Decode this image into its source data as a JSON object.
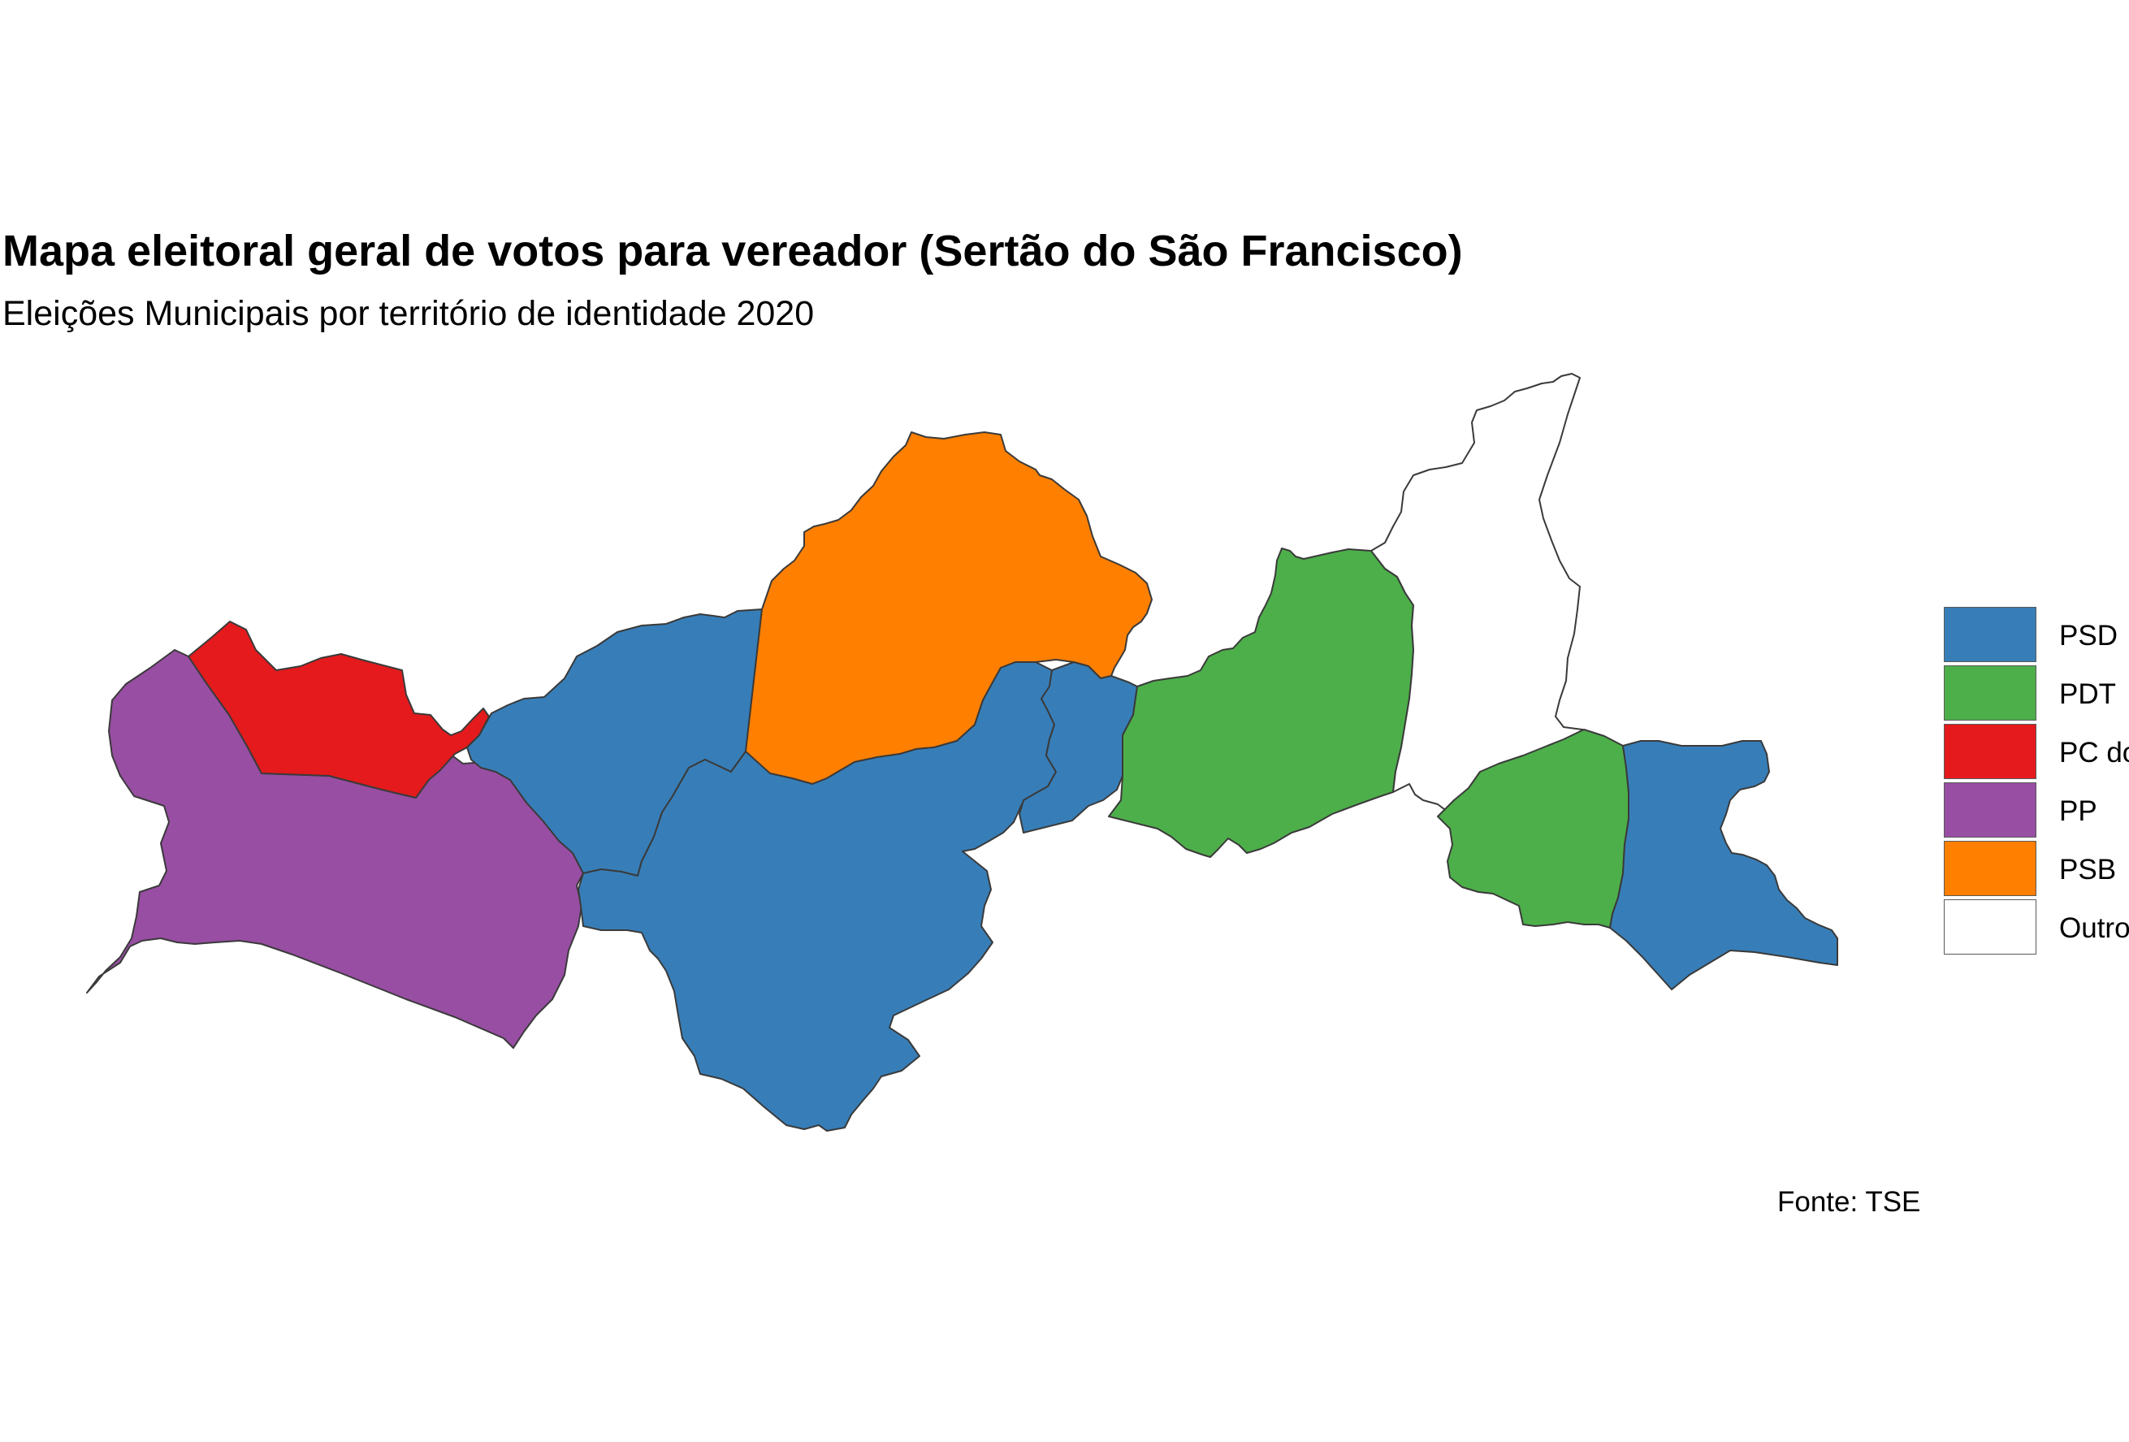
{
  "title": "Mapa eleitoral geral de votos para vereador (Sertão do São Francisco)",
  "subtitle": "Eleições Municipais por território de identidade 2020",
  "caption": "Fonte: TSE",
  "legend": {
    "items": [
      {
        "label": "PSD",
        "color": "#377EB8"
      },
      {
        "label": "PDT",
        "color": "#4DAF4A"
      },
      {
        "label": "PC do B",
        "color": "#E41A1C"
      },
      {
        "label": "PP",
        "color": "#984EA3"
      },
      {
        "label": "PSB",
        "color": "#FF7F00"
      },
      {
        "label": "Outros",
        "color": "#FFFFFF"
      }
    ]
  },
  "map": {
    "regions": [
      {
        "party": "PP",
        "color": "#984EA3"
      },
      {
        "party": "PC do B",
        "color": "#E41A1C"
      },
      {
        "party": "PSD",
        "color": "#377EB8"
      },
      {
        "party": "PSB",
        "color": "#FF7F00"
      },
      {
        "party": "PSD",
        "color": "#377EB8"
      },
      {
        "party": "PSD",
        "color": "#377EB8"
      },
      {
        "party": "PDT",
        "color": "#4DAF4A"
      },
      {
        "party": "Outros",
        "color": "#FFFFFF"
      },
      {
        "party": "PDT",
        "color": "#4DAF4A"
      },
      {
        "party": "PSD",
        "color": "#377EB8"
      }
    ]
  }
}
